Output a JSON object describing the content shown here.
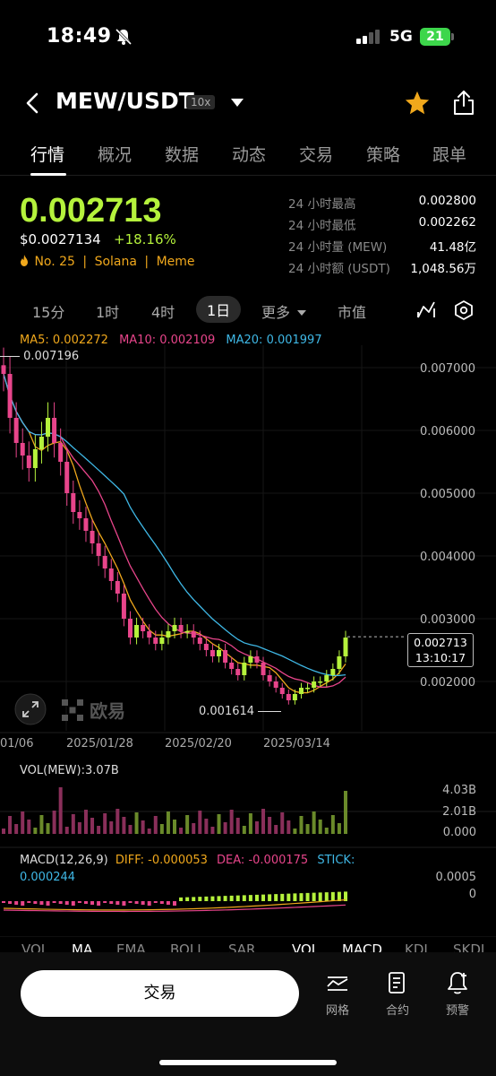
{
  "status": {
    "time": "18:49",
    "network": "5G",
    "battery": "21"
  },
  "header": {
    "pair": "MEW/USDT",
    "leverage": "10x"
  },
  "tabs": [
    {
      "label": "行情",
      "active": true
    },
    {
      "label": "概况"
    },
    {
      "label": "数据"
    },
    {
      "label": "动态"
    },
    {
      "label": "交易"
    },
    {
      "label": "策略"
    },
    {
      "label": "跟单"
    }
  ],
  "ticker": {
    "price": "0.002713",
    "usd_price": "$0.0027134",
    "change_pct": "+18.16%",
    "rank": "No. 25",
    "chain": "Solana",
    "category": "Meme"
  },
  "stats": [
    {
      "label": "24 小时最高",
      "value": "0.002800"
    },
    {
      "label": "24 小时最低",
      "value": "0.002262"
    },
    {
      "label": "24 小时量 (MEW)",
      "value": "41.48亿"
    },
    {
      "label": "24 小时额 (USDT)",
      "value": "1,048.56万"
    }
  ],
  "timeframes": [
    {
      "label": "15分"
    },
    {
      "label": "1时"
    },
    {
      "label": "4时"
    },
    {
      "label": "1日",
      "active": true
    },
    {
      "label": "更多"
    },
    {
      "label": "市值"
    }
  ],
  "ma": {
    "ma5": "MA5: 0.002272",
    "ma10": "MA10: 0.002109",
    "ma20": "MA20: 0.001997"
  },
  "chart_data": {
    "type": "candlestick",
    "y_ticks": [
      "0.007000",
      "0.006000",
      "0.005000",
      "0.004000",
      "0.003000",
      "0.002000"
    ],
    "ylim": [
      0.0015,
      0.0073
    ],
    "high_marker": "0.007196",
    "low_marker": "0.001614",
    "current_price": "0.002713",
    "countdown": "13:10:17",
    "x_ticks": [
      "01/06",
      "2025/01/28",
      "2025/02/20",
      "2025/03/14"
    ],
    "close_trend": [
      0.0069,
      0.0062,
      0.0058,
      0.0056,
      0.0054,
      0.0057,
      0.0059,
      0.0062,
      0.0058,
      0.0055,
      0.005,
      0.0047,
      0.0046,
      0.0044,
      0.0042,
      0.004,
      0.0038,
      0.0036,
      0.0034,
      0.003,
      0.0027,
      0.0029,
      0.0028,
      0.0027,
      0.0026,
      0.0027,
      0.0028,
      0.0029,
      0.0028,
      0.0028,
      0.0027,
      0.0026,
      0.0025,
      0.0024,
      0.0025,
      0.0023,
      0.0022,
      0.0021,
      0.0023,
      0.0024,
      0.0023,
      0.0021,
      0.002,
      0.0019,
      0.0018,
      0.0017,
      0.0018,
      0.0019,
      0.0019,
      0.002,
      0.002,
      0.0021,
      0.0022,
      0.0024,
      0.0027
    ]
  },
  "volume": {
    "label": "VOL(MEW):3.07B",
    "ticks": [
      "4.03B",
      "2.01B",
      "0.000"
    ]
  },
  "macd": {
    "label": "MACD(12,26,9)",
    "diff": "DIFF: -0.000053",
    "dea": "DEA: -0.000175",
    "stick": "STICK: 0.000244",
    "ticks": [
      "0.0005",
      "0"
    ]
  },
  "indicators": [
    "VOL",
    "MA",
    "EMA",
    "BOLL",
    "SAR",
    "VOL",
    "MACD",
    "KDJ",
    "SKDJ"
  ],
  "bottom": {
    "trade": "交易",
    "grid": "网格",
    "contract": "合约",
    "alert": "预警"
  },
  "watermark": "欧易",
  "colors": {
    "up": "#b5f23c",
    "down": "#e8458b",
    "ma5": "#f0a81c",
    "ma10": "#e8458b",
    "ma20": "#3fb8e6"
  }
}
